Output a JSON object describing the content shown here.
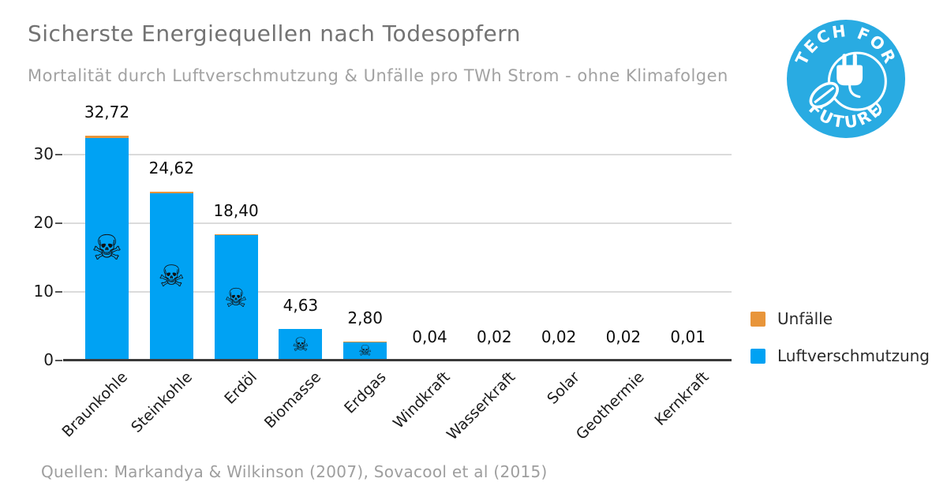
{
  "header": {
    "title": "Sicherste Energiequellen nach Todesopfern",
    "subtitle": "Mortalität durch Luftverschmutzung & Unfälle pro TWh Strom - ohne Klimafolgen"
  },
  "logo": {
    "top_text": "TECH FOR",
    "bottom_text": "FUTURE",
    "bg_color": "#29ABE2",
    "icon": "plug-leaf-icon"
  },
  "chart_data": {
    "type": "bar",
    "stacked": true,
    "title": "Sicherste Energiequellen nach Todesopfern",
    "subtitle": "Mortalität durch Luftverschmutzung & Unfälle pro TWh Strom - ohne Klimafolgen",
    "categories": [
      "Braunkohle",
      "Steinkohle",
      "Erdöl",
      "Biomasse",
      "Erdgas",
      "Windkraft",
      "Wasserkraft",
      "Solar",
      "Geothermie",
      "Kernkraft"
    ],
    "totals": [
      32.72,
      24.62,
      18.4,
      4.63,
      2.8,
      0.04,
      0.02,
      0.02,
      0.02,
      0.01
    ],
    "total_labels": [
      "32,72",
      "24,62",
      "18,40",
      "4,63",
      "2,80",
      "0,04",
      "0,02",
      "0,02",
      "0,02",
      "0,01"
    ],
    "series": [
      {
        "name": "Unfälle",
        "color": "#E8953A",
        "values": [
          0.34,
          0.25,
          0.08,
          0.04,
          0.06,
          0.04,
          0.02,
          0.02,
          0.02,
          0.01
        ]
      },
      {
        "name": "Luftverschmutzung",
        "color": "#00A2F3",
        "values": [
          32.38,
          24.37,
          18.32,
          4.59,
          2.74,
          0,
          0,
          0,
          0,
          0
        ]
      }
    ],
    "skull_on_bars": [
      "Braunkohle",
      "Steinkohle",
      "Erdöl",
      "Biomasse",
      "Erdgas"
    ],
    "skull_glyph": "☠",
    "yticks": [
      0,
      10,
      20,
      30
    ],
    "ylim": [
      0,
      34
    ],
    "grid": "horizontal",
    "legend_position": "right"
  },
  "legend": {
    "items": [
      {
        "label": "Unfälle",
        "color": "#E8953A"
      },
      {
        "label": "Luftverschmutzung",
        "color": "#00A2F3"
      }
    ]
  },
  "footer": {
    "source": "Quellen: Markandya & Wilkinson (2007), Sovacool et al (2015)"
  }
}
